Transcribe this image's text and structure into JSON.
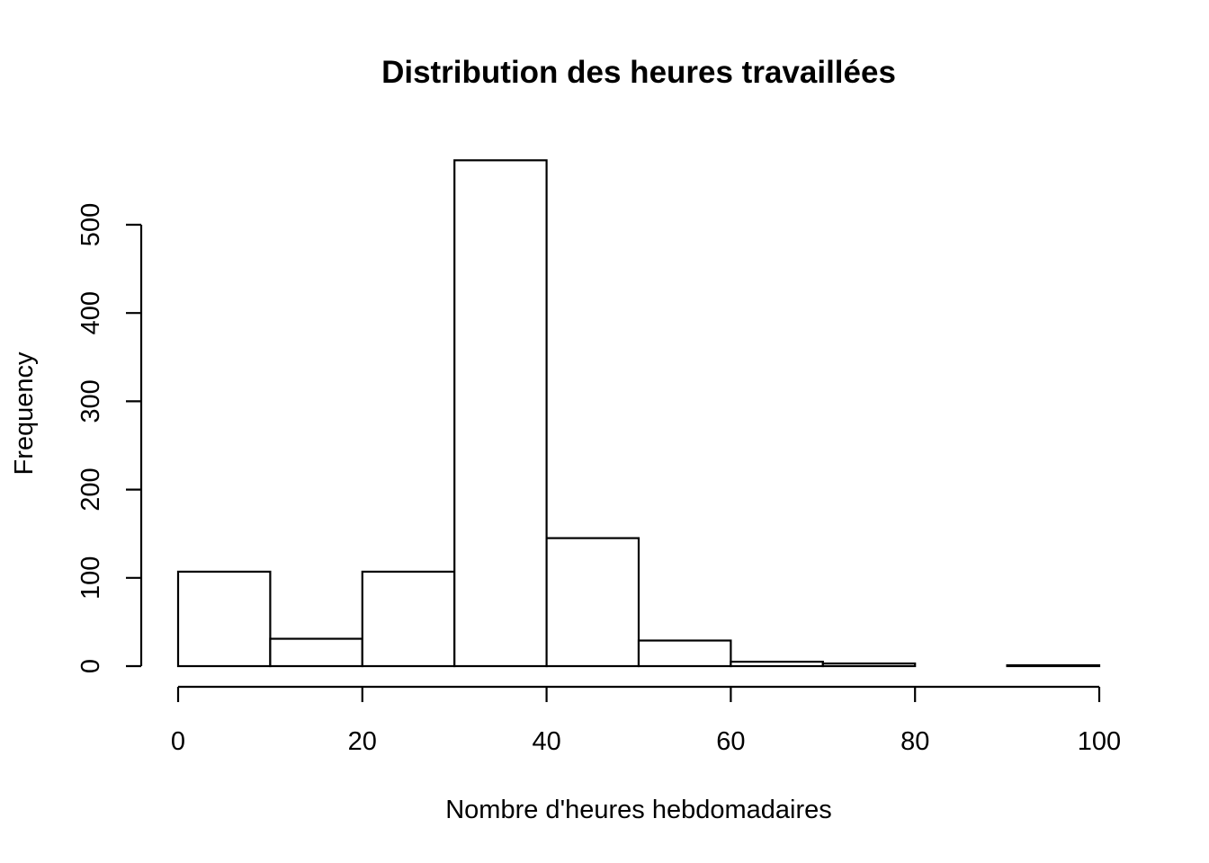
{
  "chart_data": {
    "type": "histogram",
    "title": "Distribution des heures travaillées",
    "xlabel": "Nombre d'heures hebdomadaires",
    "ylabel": "Frequency",
    "bins": [
      {
        "start": 0,
        "end": 10,
        "count": 107
      },
      {
        "start": 10,
        "end": 20,
        "count": 31
      },
      {
        "start": 20,
        "end": 30,
        "count": 107
      },
      {
        "start": 30,
        "end": 40,
        "count": 573
      },
      {
        "start": 40,
        "end": 50,
        "count": 145
      },
      {
        "start": 50,
        "end": 60,
        "count": 29
      },
      {
        "start": 60,
        "end": 70,
        "count": 5
      },
      {
        "start": 70,
        "end": 80,
        "count": 3
      },
      {
        "start": 80,
        "end": 90,
        "count": 0
      },
      {
        "start": 90,
        "end": 100,
        "count": 1
      }
    ],
    "xticks": [
      0,
      20,
      40,
      60,
      80,
      100
    ],
    "yticks": [
      0,
      100,
      200,
      300,
      400,
      500
    ],
    "xlim": [
      0,
      100
    ],
    "ylim": [
      0,
      573
    ],
    "grid": false,
    "legend": "none",
    "bar_fill": "#ffffff",
    "bar_stroke": "#000000"
  }
}
